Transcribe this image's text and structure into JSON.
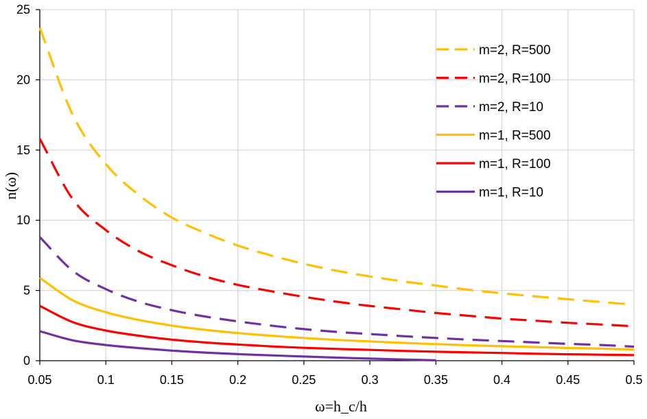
{
  "chart_data": {
    "type": "line",
    "title": "",
    "xlabel": "ω=h_c/h",
    "ylabel": "n(ω)",
    "xlim": [
      0.05,
      0.5
    ],
    "ylim": [
      0,
      25
    ],
    "x_ticks": [
      "0.05",
      "0.1",
      "0.15",
      "0.2",
      "0.25",
      "0.3",
      "0.35",
      "0.4",
      "0.45",
      "0.5"
    ],
    "y_ticks": [
      "0",
      "5",
      "10",
      "15",
      "20",
      "25"
    ],
    "grid": true,
    "legend_position": "top-right",
    "x": [
      0.05,
      0.075,
      0.1,
      0.125,
      0.15,
      0.175,
      0.2,
      0.225,
      0.25,
      0.275,
      0.3,
      0.325,
      0.35,
      0.375,
      0.4,
      0.425,
      0.45,
      0.475,
      0.5
    ],
    "series": [
      {
        "name": "m=2, R=500",
        "color": "#FFC000",
        "style": "dashed",
        "values": [
          23.7,
          17.5,
          14.0,
          11.8,
          10.2,
          9.1,
          8.2,
          7.5,
          6.9,
          6.4,
          6.0,
          5.65,
          5.35,
          5.05,
          4.8,
          4.58,
          4.38,
          4.18,
          4.0
        ]
      },
      {
        "name": "m=2, R=100",
        "color": "#FF0000",
        "style": "dashed",
        "values": [
          15.8,
          11.5,
          9.3,
          7.8,
          6.8,
          6.0,
          5.4,
          4.95,
          4.55,
          4.2,
          3.9,
          3.65,
          3.4,
          3.2,
          3.0,
          2.85,
          2.7,
          2.58,
          2.45
        ]
      },
      {
        "name": "m=2, R=10",
        "color": "#7030A0",
        "style": "dashed",
        "values": [
          8.8,
          6.4,
          5.1,
          4.2,
          3.6,
          3.15,
          2.8,
          2.5,
          2.25,
          2.05,
          1.9,
          1.75,
          1.62,
          1.5,
          1.4,
          1.3,
          1.2,
          1.12,
          1.0
        ]
      },
      {
        "name": "m=1, R=500",
        "color": "#FFC000",
        "style": "solid",
        "values": [
          5.9,
          4.3,
          3.45,
          2.9,
          2.5,
          2.2,
          1.97,
          1.78,
          1.62,
          1.48,
          1.37,
          1.27,
          1.18,
          1.1,
          1.03,
          0.97,
          0.91,
          0.86,
          0.8
        ]
      },
      {
        "name": "m=1, R=100",
        "color": "#FF0000",
        "style": "solid",
        "values": [
          3.9,
          2.75,
          2.15,
          1.78,
          1.5,
          1.3,
          1.15,
          1.02,
          0.92,
          0.84,
          0.77,
          0.7,
          0.64,
          0.59,
          0.55,
          0.5,
          0.46,
          0.43,
          0.4
        ]
      },
      {
        "name": "m=1, R=10",
        "color": "#7030A0",
        "style": "solid",
        "values": [
          2.1,
          1.45,
          1.12,
          0.9,
          0.72,
          0.58,
          0.47,
          0.38,
          0.3,
          0.22,
          0.15,
          0.09,
          0.03,
          null,
          null,
          null,
          null,
          null,
          null
        ]
      }
    ]
  }
}
